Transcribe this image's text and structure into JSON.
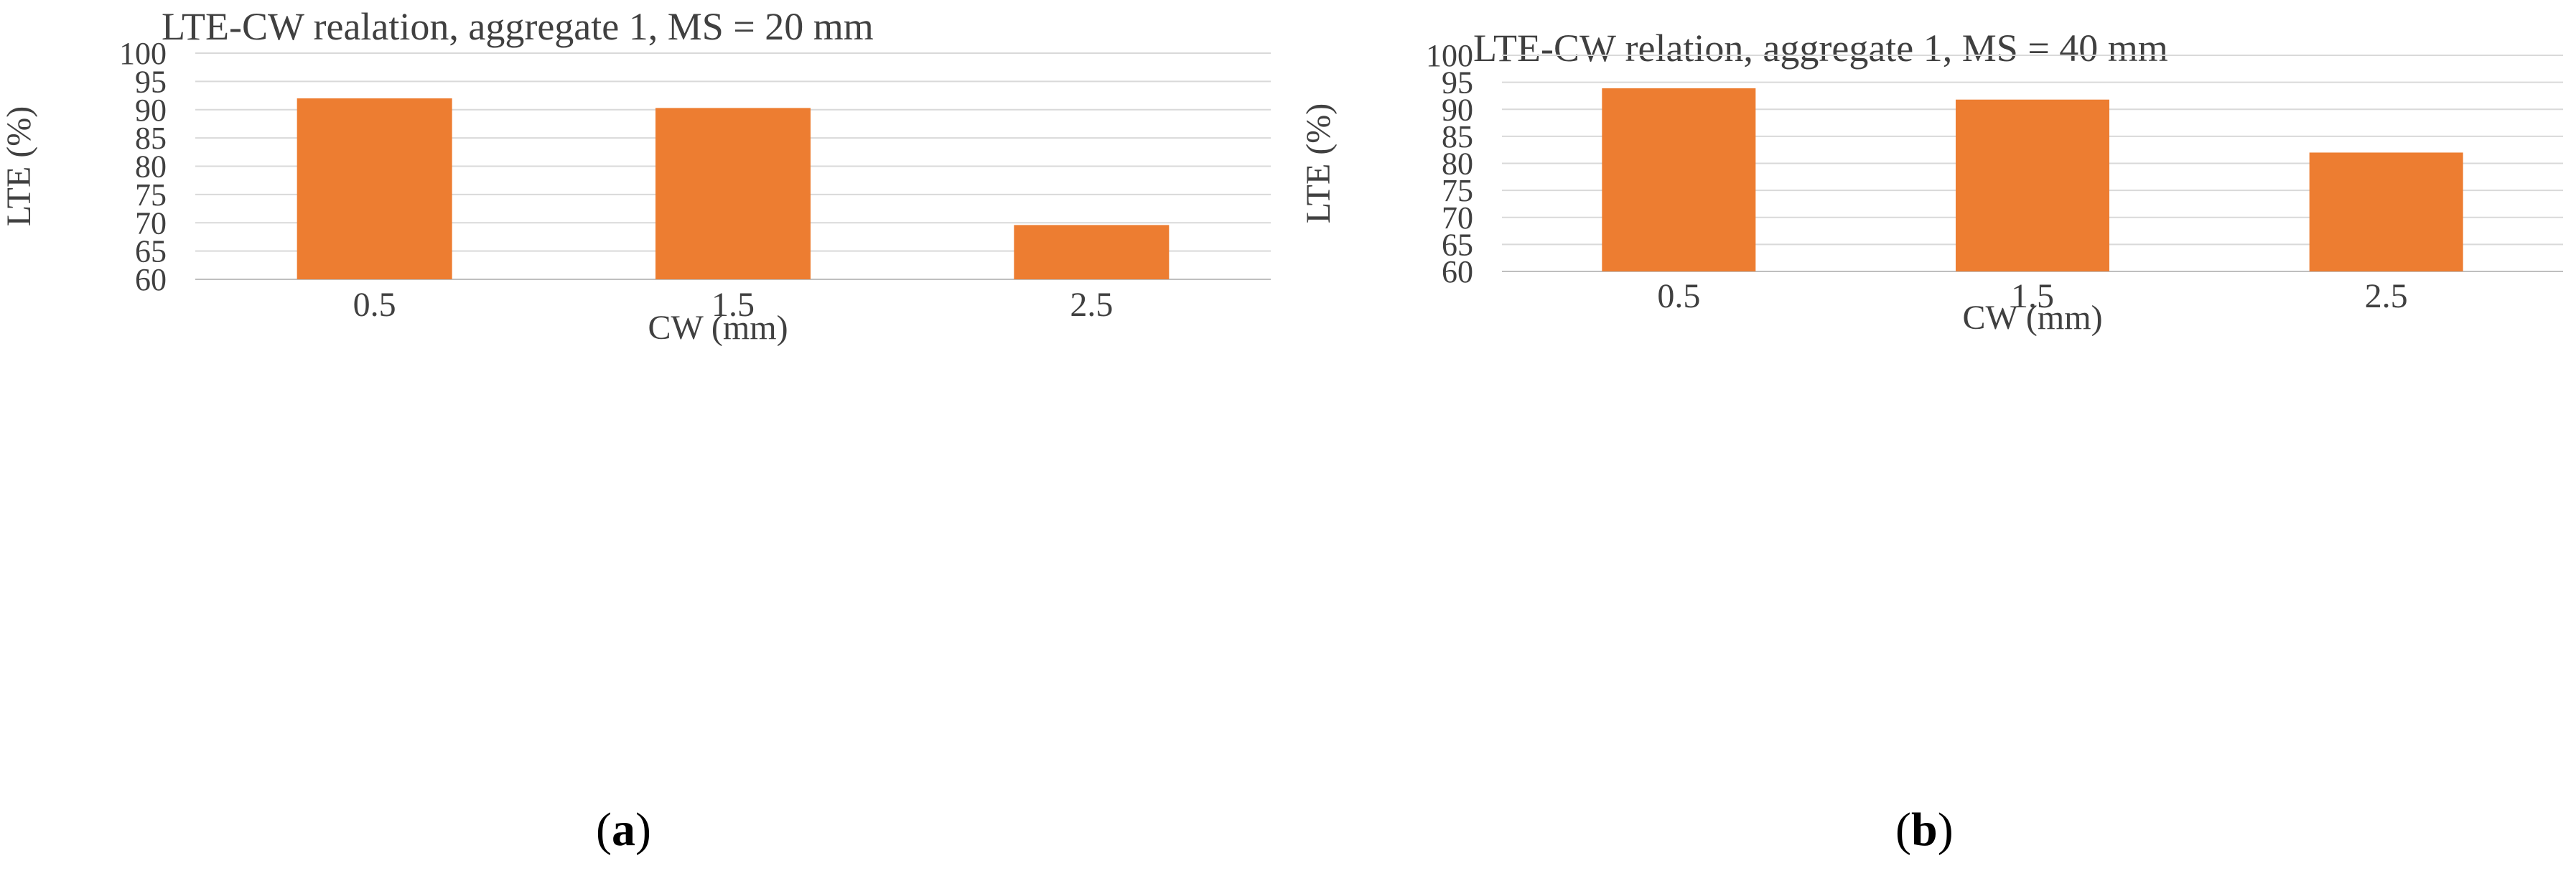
{
  "chart_data": [
    {
      "type": "bar",
      "title": "LTE-CW realation, aggregate 1, MS = 20 mm",
      "categories": [
        "0.5",
        "1.5",
        "2.5"
      ],
      "values": [
        92,
        90.3,
        69.6
      ],
      "xlabel": "CW (mm)",
      "ylabel": "LTE (%)",
      "ylim": [
        60,
        100
      ],
      "yticks": [
        60,
        65,
        70,
        75,
        80,
        85,
        90,
        95,
        100
      ],
      "grid": true,
      "bar_color": "#ED7D31",
      "panel_label": "a"
    },
    {
      "type": "bar",
      "title": "LTE-CW relation, aggregate 1, MS = 40 mm",
      "categories": [
        "0.5",
        "1.5",
        "2.5"
      ],
      "values": [
        93.9,
        91.8,
        82
      ],
      "xlabel": "CW (mm)",
      "ylabel": "LTE (%)",
      "ylim": [
        60,
        100
      ],
      "yticks": [
        60,
        65,
        70,
        75,
        80,
        85,
        90,
        95,
        100
      ],
      "grid": true,
      "bar_color": "#ED7D31",
      "panel_label": "b"
    }
  ]
}
